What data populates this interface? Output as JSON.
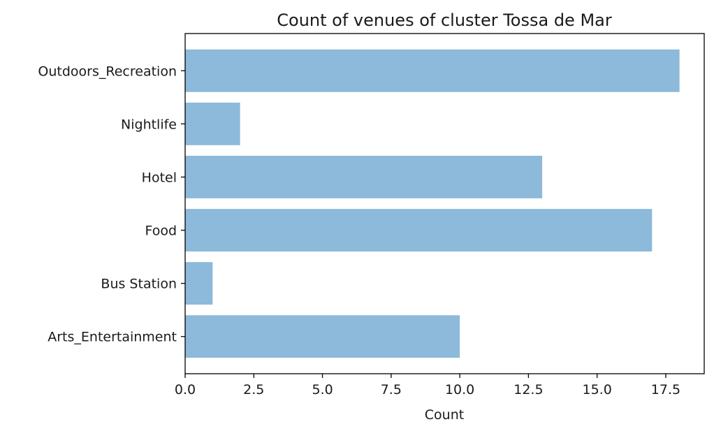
{
  "chart_data": {
    "type": "bar",
    "orientation": "horizontal",
    "title": "Count of venues of cluster Tossa de Mar",
    "xlabel": "Count",
    "ylabel": "",
    "categories": [
      "Arts_Entertainment",
      "Bus Station",
      "Food",
      "Hotel",
      "Nightlife",
      "Outdoors_Recreation"
    ],
    "values": [
      10,
      1,
      17,
      13,
      2,
      18
    ],
    "xlim": [
      0,
      18.9
    ],
    "xticks": [
      "0.0",
      "2.5",
      "5.0",
      "7.5",
      "10.0",
      "12.5",
      "15.0",
      "17.5"
    ],
    "grid": false,
    "bar_color": "#8db9da",
    "axis_color": "#000000"
  }
}
